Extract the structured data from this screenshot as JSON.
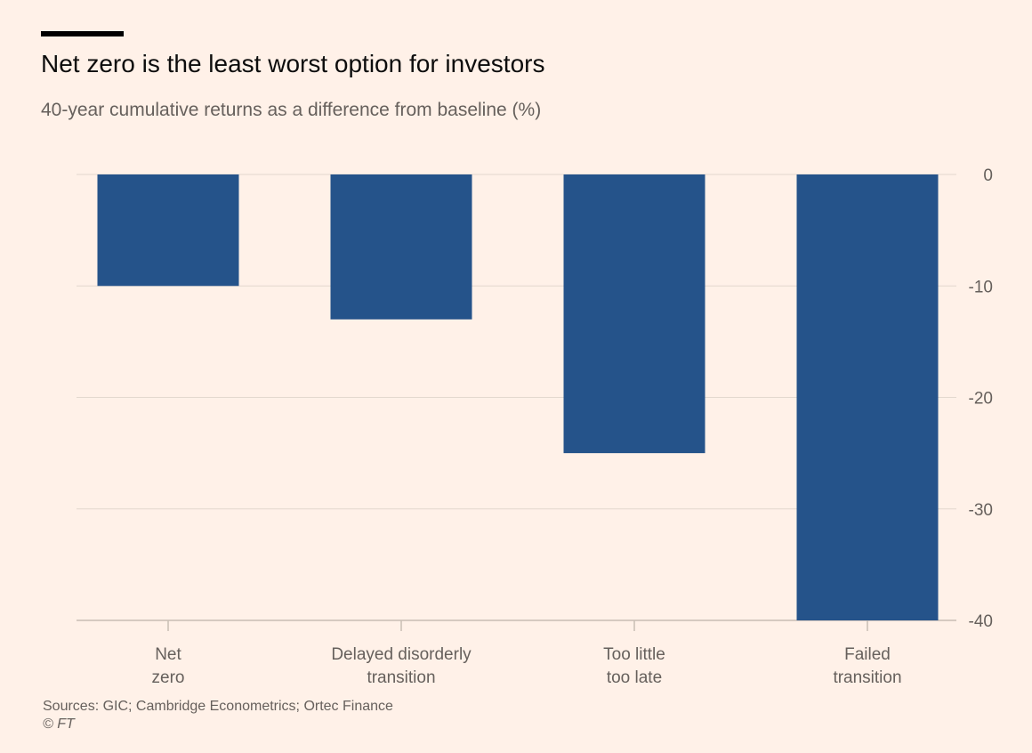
{
  "chart_data": {
    "type": "bar",
    "title": "Net zero is the least worst option for investors",
    "subtitle": "40-year cumulative returns as a difference from baseline (%)",
    "categories": [
      [
        "Net",
        "zero"
      ],
      [
        "Delayed disorderly",
        "transition"
      ],
      [
        "Too little",
        "too late"
      ],
      [
        "Failed",
        "transition"
      ]
    ],
    "values": [
      -10,
      -13,
      -25,
      -40
    ],
    "ylim": [
      -40,
      0
    ],
    "yticks": [
      0,
      -10,
      -20,
      -30,
      -40
    ],
    "ytick_labels": [
      "0",
      "-10",
      "-20",
      "-30",
      "-40"
    ],
    "y_axis_side": "right",
    "grid": true,
    "bar_color": "#25538a",
    "grid_color": "#e3d8ce",
    "axis_color": "#c9beb4",
    "label_color": "#66605c",
    "source": "Sources: GIC; Cambridge Econometrics; Ortec Finance",
    "copyright": "© FT"
  }
}
